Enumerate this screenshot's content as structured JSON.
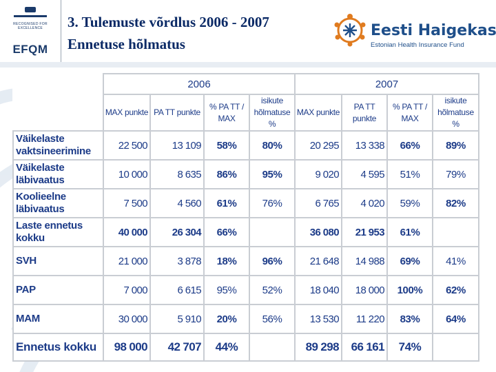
{
  "header": {
    "title": "3. Tulemuste võrdlus 2006  - 2007",
    "subtitle": "Ennetuse hõlmatus",
    "efqm_recognised": "RECOGNISED FOR EXCELLENCE",
    "efqm_mark": "EFQM",
    "org_name": "Eesti Haigekassa",
    "org_name_en": "Estonian Health Insurance Fund",
    "colors": {
      "title": "#0b2a66",
      "table_text": "#1c3b88",
      "grid": "#c9cdd3",
      "logo_orange": "#e07b1f",
      "logo_blue": "#1f4f8a"
    }
  },
  "table": {
    "years": [
      "2006",
      "2007"
    ],
    "columns": [
      "MAX punkte",
      "PA TT punkte",
      "% PA TT / MAX",
      "isikute hõlmatuse %",
      "MAX punkte",
      "PA TT punkte",
      "% PA TT / MAX",
      "isikute hõlmatuse %"
    ],
    "rows": [
      {
        "label": "Väikelaste vaktsineerimine",
        "cells": [
          "22 500",
          "13 109",
          "58%",
          "80%",
          "20 295",
          "13 338",
          "66%",
          "89%"
        ]
      },
      {
        "label": "Väikelaste läbivaatus",
        "cells": [
          "10 000",
          "8 635",
          "86%",
          "95%",
          "9 020",
          "4 595",
          "51%",
          "79%"
        ]
      },
      {
        "label": "Koolieelne läbivaatus",
        "cells": [
          "7 500",
          "4 560",
          "61%",
          "76%",
          "6 765",
          "4 020",
          "59%",
          "82%"
        ]
      },
      {
        "label": "Laste ennetus kokku",
        "cells": [
          "40 000",
          "26 304",
          "66%",
          "",
          "36 080",
          "21 953",
          "61%",
          ""
        ]
      },
      {
        "label": "SVH",
        "cells": [
          "21 000",
          "3 878",
          "18%",
          "96%",
          "21 648",
          "14 988",
          "69%",
          "41%"
        ]
      },
      {
        "label": "PAP",
        "cells": [
          "7 000",
          "6 615",
          "95%",
          "52%",
          "18 040",
          "18 000",
          "100%",
          "62%"
        ]
      },
      {
        "label": "MAM",
        "cells": [
          "30 000",
          "5 910",
          "20%",
          "56%",
          "13 530",
          "11 220",
          "83%",
          "64%"
        ]
      },
      {
        "label": "Ennetus kokku",
        "cells": [
          "98 000",
          "42 707",
          "44%",
          "",
          "89 298",
          "66 161",
          "74%",
          ""
        ]
      }
    ]
  }
}
